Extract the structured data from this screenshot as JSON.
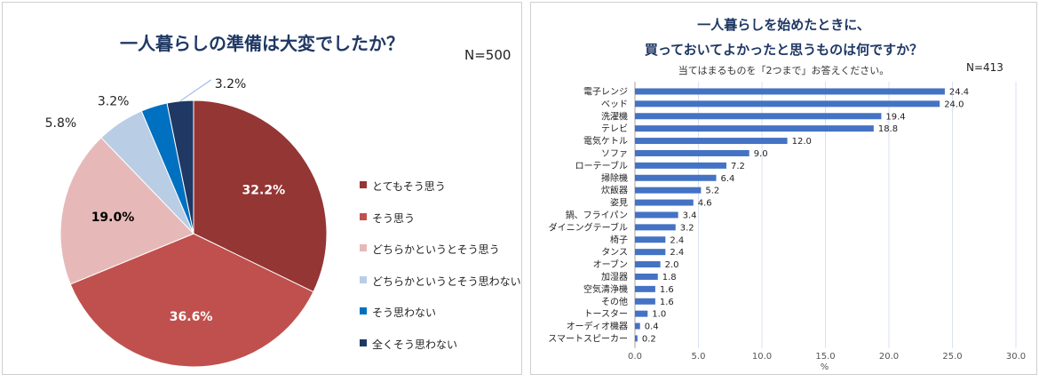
{
  "chart_data": [
    {
      "type": "pie",
      "title": "一人暮らしの準備は大変でしたか？",
      "n_label": "N=500",
      "legend_position": "right",
      "categories": [
        "とてもそう思う",
        "そう思う",
        "どちらかというとそう思う",
        "どちらかというとそう思わない",
        "そう思わない",
        "全くそう思わない"
      ],
      "values": [
        32.2,
        36.6,
        19.0,
        5.8,
        3.2,
        3.2
      ],
      "value_labels": [
        "32.2%",
        "36.6%",
        "19.0%",
        "5.8%",
        "3.2%",
        "3.2%"
      ],
      "colors": [
        "#943634",
        "#c0504d",
        "#e6b9b8",
        "#b9cde5",
        "#0070c0",
        "#1f3864"
      ]
    },
    {
      "type": "bar",
      "orientation": "horizontal",
      "title_lines": [
        "一人暮らしを始めたときに、",
        "買っておいてよかったと思うものは何ですか？"
      ],
      "subtitle": "当てはまるものを「2つまで」お答えください。",
      "n_label": "N=413",
      "categories": [
        "電子レンジ",
        "ベッド",
        "洗濯機",
        "テレビ",
        "電気ケトル",
        "ソファ",
        "ローテーブル",
        "掃除機",
        "炊飯器",
        "姿見",
        "鍋、フライパン",
        "ダイニングテーブル",
        "椅子",
        "タンス",
        "オーブン",
        "加湿器",
        "空気清浄機",
        "その他",
        "トースター",
        "オーディオ機器",
        "スマートスピーカー"
      ],
      "values": [
        24.4,
        24.0,
        19.4,
        18.8,
        12.0,
        9.0,
        7.2,
        6.4,
        5.2,
        4.6,
        3.4,
        3.2,
        2.4,
        2.4,
        2.0,
        1.8,
        1.6,
        1.6,
        1.0,
        0.4,
        0.2
      ],
      "value_labels": [
        "24.4",
        "24.0",
        "19.4",
        "18.8",
        "12.0",
        "9.0",
        "7.2",
        "6.4",
        "5.2",
        "4.6",
        "3.4",
        "3.2",
        "2.4",
        "2.4",
        "2.0",
        "1.8",
        "1.6",
        "1.6",
        "1.0",
        "0.4",
        "0.2"
      ],
      "xlim": [
        0,
        30
      ],
      "xticks": [
        "0.0",
        "5.0",
        "10.0",
        "15.0",
        "20.0",
        "25.0",
        "30.0"
      ],
      "xlabel": "%",
      "grid": true,
      "bar_color": "#4472c4"
    }
  ]
}
